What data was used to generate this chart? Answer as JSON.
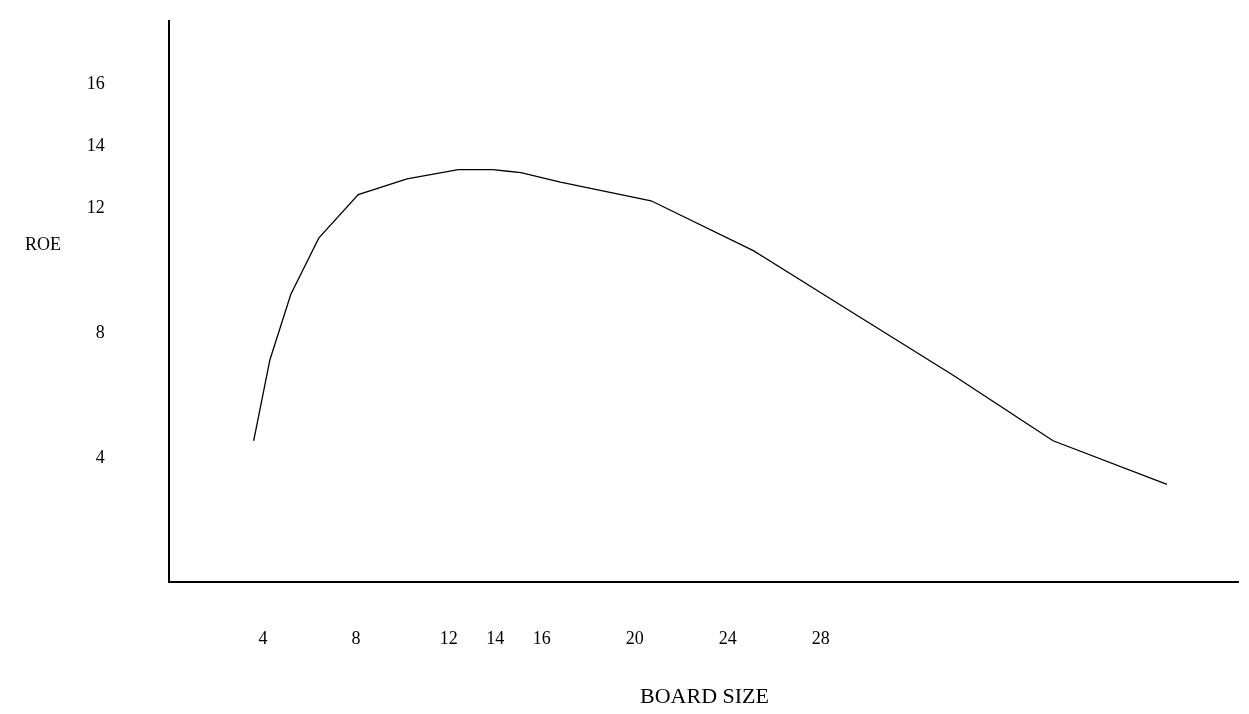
{
  "chart_data": {
    "type": "line",
    "xlabel": "BOARD SIZE",
    "ylabel": "ROE",
    "x": [
      3.6,
      4.3,
      5.2,
      6.4,
      8.1,
      10.2,
      12.4,
      13.9,
      15.1,
      16.8,
      20.7,
      25.1,
      29.4,
      33.7,
      38.0,
      42.9
    ],
    "series": [
      {
        "color": "#000000",
        "values": [
          4.5,
          7.1,
          9.2,
          11.0,
          12.4,
          12.9,
          13.2,
          13.2,
          13.1,
          12.8,
          12.2,
          10.6,
          8.6,
          6.6,
          4.5,
          3.1
        ]
      }
    ],
    "xlim": [
      0,
      46
    ],
    "ylim": [
      0,
      18
    ],
    "xticks": [
      4,
      8,
      12,
      14,
      16,
      20,
      24,
      28
    ],
    "yticks": [
      4,
      8,
      12,
      14,
      16
    ],
    "marker": "none",
    "line_style": "solid"
  }
}
